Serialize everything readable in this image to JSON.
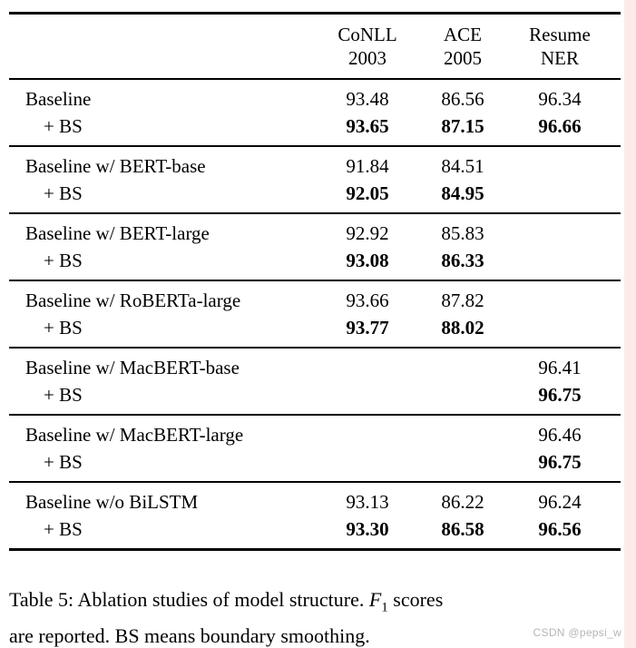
{
  "page": {
    "background_color": "#ffffff",
    "text_color": "#000000",
    "right_strip_color": "#fcebe9",
    "watermark_color": "#b5b5b5"
  },
  "table": {
    "headers": [
      {
        "line1": "CoNLL",
        "line2": "2003"
      },
      {
        "line1": "ACE",
        "line2": "2005"
      },
      {
        "line1": "Resume",
        "line2": "NER"
      }
    ],
    "groups": [
      {
        "rows": [
          {
            "label": "Baseline",
            "values": [
              "93.48",
              "86.56",
              "96.34"
            ]
          },
          {
            "label": "+ BS",
            "values": [
              "93.65",
              "87.15",
              "96.66"
            ]
          }
        ]
      },
      {
        "rows": [
          {
            "label": "Baseline w/ BERT-base",
            "values": [
              "91.84",
              "84.51",
              ""
            ]
          },
          {
            "label": "+ BS",
            "values": [
              "92.05",
              "84.95",
              ""
            ]
          }
        ]
      },
      {
        "rows": [
          {
            "label": "Baseline w/ BERT-large",
            "values": [
              "92.92",
              "85.83",
              ""
            ]
          },
          {
            "label": "+ BS",
            "values": [
              "93.08",
              "86.33",
              ""
            ]
          }
        ]
      },
      {
        "rows": [
          {
            "label": "Baseline w/ RoBERTa-large",
            "values": [
              "93.66",
              "87.82",
              ""
            ]
          },
          {
            "label": "+ BS",
            "values": [
              "93.77",
              "88.02",
              ""
            ]
          }
        ]
      },
      {
        "rows": [
          {
            "label": "Baseline w/ MacBERT-base",
            "values": [
              "",
              "",
              "96.41"
            ]
          },
          {
            "label": "+ BS",
            "values": [
              "",
              "",
              "96.75"
            ]
          }
        ]
      },
      {
        "rows": [
          {
            "label": "Baseline w/ MacBERT-large",
            "values": [
              "",
              "",
              "96.46"
            ]
          },
          {
            "label": "+ BS",
            "values": [
              "",
              "",
              "96.75"
            ]
          }
        ]
      },
      {
        "rows": [
          {
            "label": "Baseline w/o BiLSTM",
            "values": [
              "93.13",
              "86.22",
              "96.24"
            ]
          },
          {
            "label": "+ BS",
            "values": [
              "93.30",
              "86.58",
              "96.56"
            ]
          }
        ]
      }
    ]
  },
  "caption": {
    "line1_prefix": "Table 5: Ablation studies of model structure. ",
    "math_f": "F",
    "math_sub": "1",
    "line1_suffix": " scores",
    "line2": "are reported. BS means boundary smoothing."
  },
  "watermark": "CSDN @pepsi_w"
}
